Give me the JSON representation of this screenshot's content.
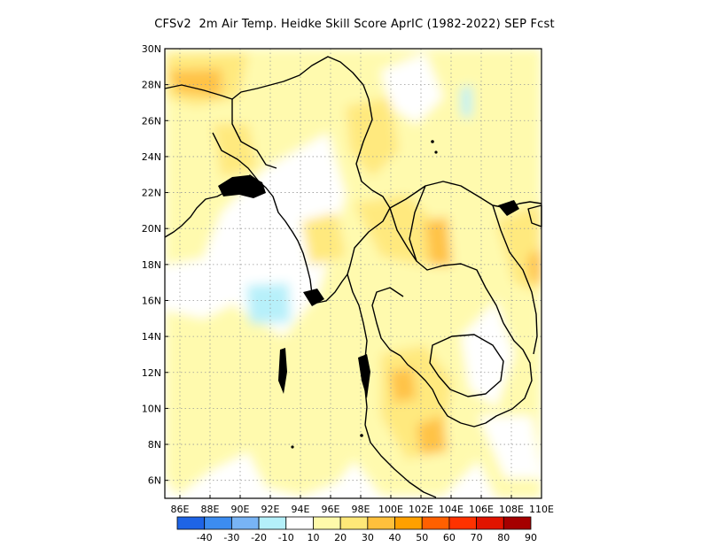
{
  "title": "CFSv2  2m Air Temp. Heidke Skill Score AprIC (1982-2022) SEP Fcst",
  "map": {
    "lat_labels": [
      "30N",
      "28N",
      "26N",
      "24N",
      "22N",
      "20N",
      "18N",
      "16N",
      "14N",
      "12N",
      "10N",
      "8N",
      "6N"
    ],
    "lon_labels": [
      "86E",
      "88E",
      "90E",
      "92E",
      "94E",
      "96E",
      "98E",
      "100E",
      "102E",
      "104E",
      "106E",
      "108E",
      "110E"
    ],
    "lat_range": [
      5,
      30
    ],
    "lon_range": [
      85,
      110
    ],
    "grid": "dotted",
    "colors": {
      "coast": "#000000",
      "land_border": "#000000",
      "grid": "#9a9a9a"
    }
  },
  "colorbar": {
    "labels": [
      "-40",
      "-30",
      "-20",
      "-10",
      "10",
      "20",
      "30",
      "40",
      "50",
      "60",
      "70",
      "80",
      "90"
    ],
    "colors": [
      "#1e64e6",
      "#3c8cf0",
      "#78b4f5",
      "#b4f0fa",
      "#ffffff",
      "#fffaaa",
      "#ffe878",
      "#ffc03c",
      "#ffa000",
      "#ff6000",
      "#ff3200",
      "#e11400",
      "#a50000"
    ]
  }
}
